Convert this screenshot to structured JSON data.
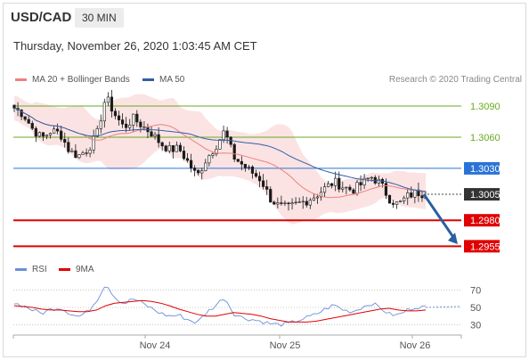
{
  "header": {
    "pair": "USD/CAD",
    "interval": "30 MIN",
    "datetime": "Thursday, November 26, 2020 1:03:45 AM CET"
  },
  "legend": {
    "ma20_label": "MA 20 + Bollinger Bands",
    "ma50_label": "MA 50",
    "credit": "Research © 2020 Trading Central",
    "rsi_label": "RSI",
    "rsi_ma_label": "9MA"
  },
  "colors": {
    "ma20": "#f08080",
    "ma50": "#2f5fa8",
    "band_fill": "#fadada",
    "candle": "#1a1a1a",
    "green_level": "#6aaa20",
    "blue_level": "#2a73d6",
    "red_level": "#e00000",
    "current_price": "#333333",
    "arrow": "#2a5fa0",
    "rsi": "#6a8fd6",
    "rsi_ma": "#e00000"
  },
  "chart_data": [
    {
      "type": "candlestick",
      "x_ticks": [
        "Nov 24",
        "Nov 25",
        "Nov 26"
      ],
      "ylim": [
        1.2945,
        1.3108
      ],
      "price_path": [
        1.3088,
        1.3082,
        1.3068,
        1.3059,
        1.3066,
        1.3064,
        1.3047,
        1.3042,
        1.3048,
        1.3061,
        1.3099,
        1.3082,
        1.3069,
        1.3078,
        1.3071,
        1.3064,
        1.3054,
        1.3048,
        1.3049,
        1.3036,
        1.3022,
        1.3039,
        1.3051,
        1.3066,
        1.3041,
        1.3033,
        1.3026,
        1.3019,
        1.3001,
        1.2993,
        1.2992,
        1.2996,
        1.2999,
        1.3004,
        1.3011,
        1.3017,
        1.3012,
        1.3009,
        1.3015,
        1.3022,
        1.3016,
        1.3001,
        1.2995,
        1.3003,
        1.3007,
        1.3005
      ],
      "levels": [
        {
          "value": 1.309,
          "label": "1.3090",
          "kind": "resistance-minor"
        },
        {
          "value": 1.306,
          "label": "1.3060",
          "kind": "resistance-minor"
        },
        {
          "value": 1.303,
          "label": "1.3030",
          "kind": "pivot"
        },
        {
          "value": 1.3005,
          "label": "1.3005",
          "kind": "current"
        },
        {
          "value": 1.298,
          "label": "1.2980",
          "kind": "target"
        },
        {
          "value": 1.2955,
          "label": "1.2955",
          "kind": "target"
        }
      ],
      "series": [
        {
          "name": "MA 20 + Bollinger Bands"
        },
        {
          "name": "MA 50"
        }
      ],
      "forecast_arrow": {
        "from": 1.3005,
        "to": 1.2957
      }
    },
    {
      "type": "line",
      "ylim": [
        20,
        80
      ],
      "y_ticks": [
        {
          "value": 70,
          "label": "70"
        },
        {
          "value": 50,
          "label": "50"
        },
        {
          "value": 30,
          "label": "30"
        }
      ],
      "series": [
        {
          "name": "RSI",
          "values": [
            55,
            52,
            47,
            43,
            48,
            50,
            44,
            39,
            45,
            58,
            78,
            62,
            54,
            60,
            55,
            49,
            43,
            40,
            41,
            36,
            32,
            44,
            52,
            62,
            43,
            38,
            36,
            34,
            31,
            30,
            31,
            35,
            38,
            42,
            48,
            53,
            47,
            45,
            50,
            55,
            50,
            42,
            41,
            47,
            51,
            50
          ]
        },
        {
          "name": "9MA",
          "values": [
            52,
            51,
            50,
            48,
            47,
            47,
            46,
            45,
            45,
            47,
            52,
            55,
            56,
            57,
            58,
            57,
            55,
            52,
            48,
            45,
            42,
            40,
            40,
            42,
            44,
            43,
            42,
            40,
            37,
            35,
            33,
            33,
            33,
            34,
            36,
            38,
            40,
            42,
            44,
            46,
            48,
            49,
            47,
            46,
            46,
            47
          ]
        }
      ]
    }
  ]
}
